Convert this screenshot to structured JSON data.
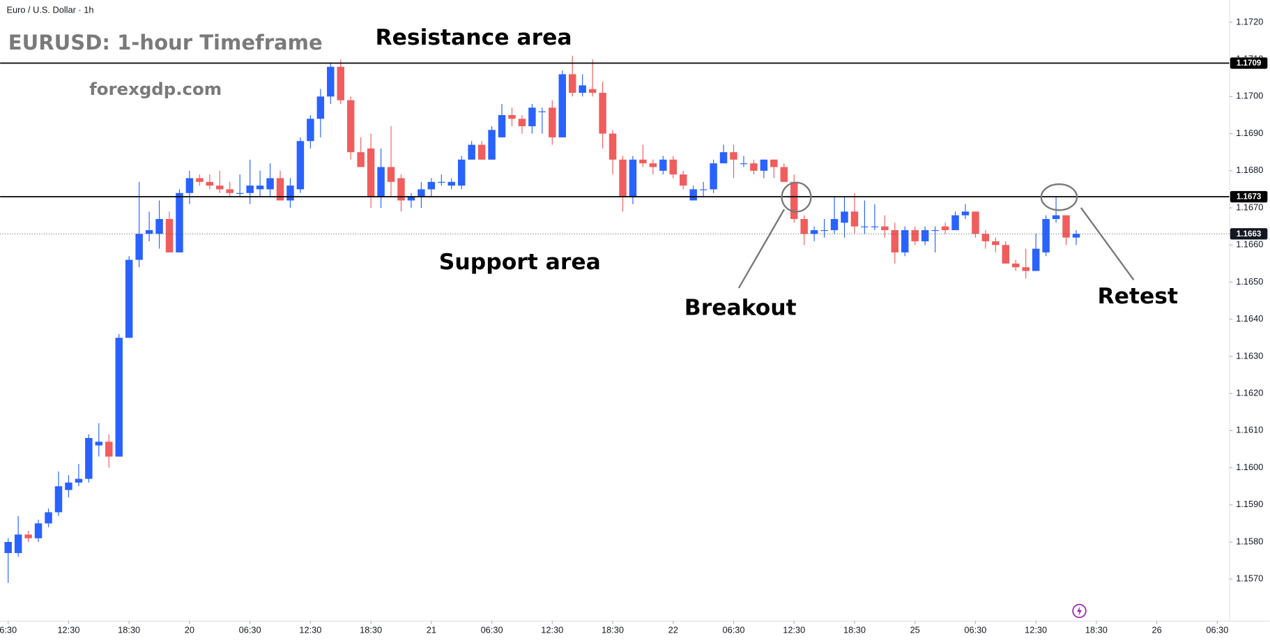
{
  "chart_data": {
    "type": "candlestick",
    "header": "Euro / U.S. Dollar · 1h",
    "title": "EURUSD: 1-hour Timeframe",
    "subtitle": "forexgdp.com",
    "annotations": [
      "Resistance area",
      "Support area",
      "Breakout",
      "Retest"
    ],
    "up_color": "#2962ff",
    "down_color": "#f05d5d",
    "open": [
      1.1577,
      1.1577,
      1.1582,
      1.1581,
      1.1585,
      1.1588,
      1.1594,
      1.1596,
      1.1597,
      1.1606,
      1.1607,
      1.1603,
      1.1635,
      1.1656,
      1.1663,
      1.1663,
      1.1667,
      1.1658,
      1.1674,
      1.1678,
      1.1677,
      1.1676,
      1.1675,
      1.1674,
      1.1674,
      1.1675,
      1.1675,
      1.1678,
      1.1672,
      1.1675,
      1.1688,
      1.1694,
      1.17,
      1.1708,
      1.1699,
      1.1685,
      1.1686,
      1.1673,
      1.1681,
      1.1678,
      1.1672,
      1.1673,
      1.1675,
      1.1677,
      1.1676,
      1.1676,
      1.1683,
      1.1687,
      1.1683,
      1.1689,
      1.1695,
      1.1694,
      1.1692,
      1.1696,
      1.1697,
      1.1689,
      1.1706,
      1.1701,
      1.1702,
      1.1701,
      1.169,
      1.1683,
      1.1673,
      1.1683,
      1.1682,
      1.168,
      1.1683,
      1.1679,
      1.1672,
      1.1675,
      1.1675,
      1.1682,
      1.1685,
      1.1682,
      1.1682,
      1.168,
      1.1683,
      1.1681,
      1.1677,
      1.1667,
      1.1663,
      1.1664,
      1.1664,
      1.1666,
      1.1669,
      1.1665,
      1.1665,
      1.1665,
      1.1664,
      1.1658,
      1.1664,
      1.1661,
      1.1664,
      1.1665,
      1.1664,
      1.1668,
      1.1669,
      1.1663,
      1.1661,
      1.166,
      1.1655,
      1.1654,
      1.1653,
      1.1658,
      1.1667,
      1.1668,
      1.1662
    ],
    "high": [
      1.1581,
      1.1587,
      1.1583,
      1.1586,
      1.1589,
      1.1599,
      1.1598,
      1.1601,
      1.1609,
      1.1612,
      1.1609,
      1.1636,
      1.1657,
      1.1677,
      1.1669,
      1.1672,
      1.1669,
      1.1675,
      1.168,
      1.1679,
      1.1679,
      1.168,
      1.1677,
      1.1679,
      1.1683,
      1.168,
      1.1682,
      1.168,
      1.1678,
      1.1689,
      1.1695,
      1.1702,
      1.1709,
      1.171,
      1.17,
      1.1689,
      1.169,
      1.1686,
      1.1692,
      1.1679,
      1.1674,
      1.1677,
      1.1678,
      1.1679,
      1.1678,
      1.1684,
      1.1688,
      1.1688,
      1.1692,
      1.1698,
      1.1697,
      1.1695,
      1.1698,
      1.1697,
      1.1699,
      1.1707,
      1.1711,
      1.1706,
      1.171,
      1.1704,
      1.1691,
      1.1684,
      1.1684,
      1.1687,
      1.1683,
      1.1684,
      1.1684,
      1.168,
      1.1676,
      1.1677,
      1.1683,
      1.1687,
      1.1687,
      1.1684,
      1.1683,
      1.1683,
      1.1683,
      1.1682,
      1.1679,
      1.1668,
      1.1665,
      1.1667,
      1.1673,
      1.1673,
      1.1674,
      1.1672,
      1.1671,
      1.1668,
      1.1666,
      1.1665,
      1.1665,
      1.1665,
      1.1665,
      1.1666,
      1.1669,
      1.1671,
      1.1669,
      1.1664,
      1.1662,
      1.1661,
      1.1656,
      1.1659,
      1.1663,
      1.1668,
      1.1673,
      1.1668,
      1.1664
    ],
    "low": [
      1.1569,
      1.1576,
      1.158,
      1.158,
      1.1584,
      1.1587,
      1.1592,
      1.1595,
      1.1596,
      1.1603,
      1.16,
      1.1603,
      1.1635,
      1.1654,
      1.1661,
      1.1659,
      1.1658,
      1.1658,
      1.1671,
      1.1676,
      1.1675,
      1.1674,
      1.1673,
      1.1673,
      1.1671,
      1.1673,
      1.1673,
      1.1672,
      1.167,
      1.1674,
      1.1686,
      1.1689,
      1.1698,
      1.1698,
      1.1683,
      1.1681,
      1.167,
      1.167,
      1.1673,
      1.1669,
      1.167,
      1.167,
      1.1673,
      1.1676,
      1.1675,
      1.1675,
      1.1683,
      1.1683,
      1.1683,
      1.1689,
      1.1692,
      1.169,
      1.169,
      1.169,
      1.1687,
      1.1689,
      1.17,
      1.17,
      1.17,
      1.1686,
      1.1679,
      1.1669,
      1.1671,
      1.1681,
      1.1679,
      1.1679,
      1.1678,
      1.1675,
      1.1672,
      1.1673,
      1.1674,
      1.1682,
      1.1678,
      1.1681,
      1.1679,
      1.1678,
      1.1678,
      1.1677,
      1.1666,
      1.166,
      1.1661,
      1.1662,
      1.1663,
      1.1662,
      1.1663,
      1.1663,
      1.1664,
      1.1662,
      1.1655,
      1.1657,
      1.166,
      1.166,
      1.1658,
      1.1663,
      1.1664,
      1.1667,
      1.1662,
      1.1659,
      1.1658,
      1.1655,
      1.1653,
      1.1651,
      1.1653,
      1.1657,
      1.1666,
      1.166,
      1.166
    ],
    "close": [
      1.158,
      1.1582,
      1.1581,
      1.1585,
      1.1588,
      1.1595,
      1.1596,
      1.1597,
      1.1608,
      1.1607,
      1.1603,
      1.1635,
      1.1656,
      1.1663,
      1.1664,
      1.1667,
      1.1658,
      1.1674,
      1.1678,
      1.1677,
      1.1676,
      1.1675,
      1.1674,
      1.1674,
      1.1676,
      1.1676,
      1.1678,
      1.1672,
      1.1676,
      1.1688,
      1.1694,
      1.17,
      1.1708,
      1.1699,
      1.1685,
      1.1681,
      1.1673,
      1.1681,
      1.1677,
      1.1672,
      1.1673,
      1.1675,
      1.1677,
      1.1677,
      1.1677,
      1.1683,
      1.1687,
      1.1683,
      1.1691,
      1.1695,
      1.1694,
      1.1692,
      1.1697,
      1.1696,
      1.1689,
      1.1706,
      1.1701,
      1.1703,
      1.1701,
      1.169,
      1.1683,
      1.1673,
      1.1683,
      1.1682,
      1.1681,
      1.1683,
      1.1679,
      1.1676,
      1.1675,
      1.1675,
      1.1682,
      1.1685,
      1.1683,
      1.1682,
      1.168,
      1.1683,
      1.1681,
      1.1677,
      1.1667,
      1.1663,
      1.1664,
      1.1664,
      1.1667,
      1.1669,
      1.1665,
      1.1665,
      1.1665,
      1.1664,
      1.1658,
      1.1664,
      1.1661,
      1.1664,
      1.1664,
      1.1664,
      1.1668,
      1.1669,
      1.1663,
      1.1661,
      1.166,
      1.1655,
      1.1654,
      1.1653,
      1.1659,
      1.1667,
      1.1668,
      1.1662,
      1.1663
    ],
    "ylim": [
      1.1559,
      1.1726
    ],
    "yticks": [
      {
        "value": 1.157,
        "label": "1.1570"
      },
      {
        "value": 1.158,
        "label": "1.1580"
      },
      {
        "value": 1.159,
        "label": "1.1590"
      },
      {
        "value": 1.16,
        "label": "1.1600"
      },
      {
        "value": 1.161,
        "label": "1.1610"
      },
      {
        "value": 1.162,
        "label": "1.1620"
      },
      {
        "value": 1.163,
        "label": "1.1630"
      },
      {
        "value": 1.164,
        "label": "1.1640"
      },
      {
        "value": 1.165,
        "label": "1.1650"
      },
      {
        "value": 1.166,
        "label": "1.1660"
      },
      {
        "value": 1.167,
        "label": "1.1670"
      },
      {
        "value": 1.168,
        "label": "1.1680"
      },
      {
        "value": 1.169,
        "label": "1.1690"
      },
      {
        "value": 1.17,
        "label": "1.1700"
      },
      {
        "value": 1.171,
        "label": "1.1710"
      },
      {
        "value": 1.172,
        "label": "1.1720"
      }
    ],
    "xlim": [
      -0.8,
      121.2
    ],
    "xticks": [
      {
        "value": 0,
        "label": "6:30"
      },
      {
        "value": 6,
        "label": "12:30"
      },
      {
        "value": 12,
        "label": "18:30"
      },
      {
        "value": 18,
        "label": "20"
      },
      {
        "value": 24,
        "label": "06:30"
      },
      {
        "value": 30,
        "label": "12:30"
      },
      {
        "value": 36,
        "label": "18:30"
      },
      {
        "value": 42,
        "label": "21"
      },
      {
        "value": 48,
        "label": "06:30"
      },
      {
        "value": 54,
        "label": "12:30"
      },
      {
        "value": 60,
        "label": "18:30"
      },
      {
        "value": 66,
        "label": "22"
      },
      {
        "value": 72,
        "label": "06:30"
      },
      {
        "value": 78,
        "label": "12:30"
      },
      {
        "value": 84,
        "label": "18:30"
      },
      {
        "value": 90,
        "label": "25"
      },
      {
        "value": 96,
        "label": "06:30"
      },
      {
        "value": 102,
        "label": "12:30"
      },
      {
        "value": 108,
        "label": "18:30"
      },
      {
        "value": 114,
        "label": "26"
      },
      {
        "value": 120,
        "label": "06:30"
      }
    ],
    "levels": [
      1.1709,
      1.1673,
      1.1663
    ],
    "level_styles": [
      "solid",
      "solid",
      "dotted"
    ]
  }
}
